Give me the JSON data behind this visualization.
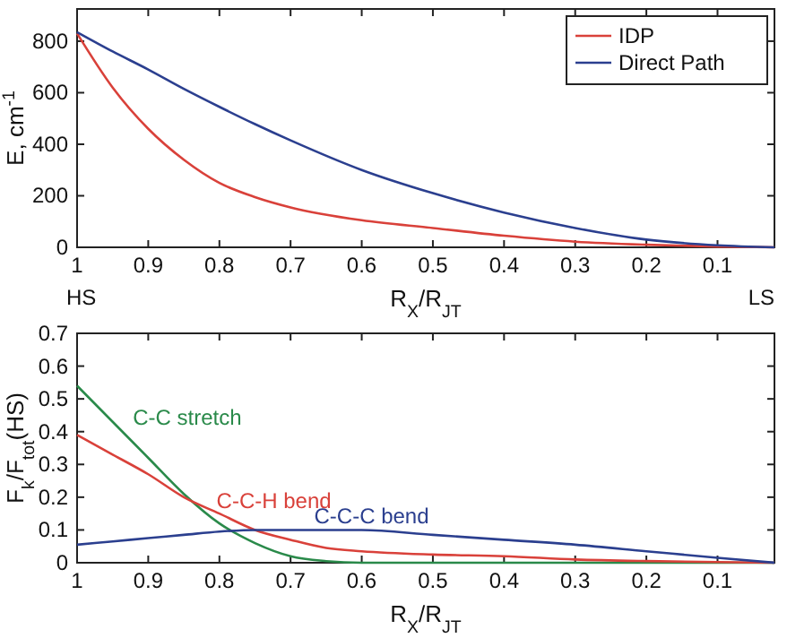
{
  "chart_data": [
    {
      "type": "line",
      "ylabel": "E, cm$^{-1}$",
      "xlabel": "R$_{X}$/R$_{JT}$",
      "annotations": [
        "HS",
        "LS"
      ],
      "xlim": [
        1,
        0.02
      ],
      "ylim": [
        0,
        925
      ],
      "xticks": [
        1,
        0.9,
        0.8,
        0.7,
        0.6,
        0.5,
        0.4,
        0.3,
        0.2,
        0.1
      ],
      "yticks": [
        0,
        200,
        400,
        600,
        800
      ],
      "legend": "top right",
      "grid": false,
      "x": [
        1,
        0.95,
        0.9,
        0.85,
        0.8,
        0.75,
        0.7,
        0.6,
        0.5,
        0.4,
        0.3,
        0.2,
        0.1,
        0.02
      ],
      "series": [
        {
          "name": "IDP",
          "color": "#d9413a",
          "values": [
            830,
            620,
            460,
            340,
            250,
            195,
            155,
            105,
            75,
            45,
            22,
            10,
            3,
            0
          ]
        },
        {
          "name": "Direct Path",
          "color": "#2b3f8f",
          "values": [
            835,
            760,
            690,
            615,
            545,
            478,
            415,
            300,
            210,
            135,
            75,
            30,
            8,
            0
          ]
        }
      ]
    },
    {
      "type": "line",
      "ylabel": "F$_{k}$/F$_{tot}$(HS)",
      "xlabel": "R$_{X}$/R$_{JT}$",
      "xlim": [
        1,
        0.02
      ],
      "ylim": [
        0,
        0.7
      ],
      "xticks": [
        1,
        0.9,
        0.8,
        0.7,
        0.6,
        0.5,
        0.4,
        0.3,
        0.2,
        0.1
      ],
      "yticks": [
        0,
        0.1,
        0.2,
        0.3,
        0.4,
        0.5,
        0.6,
        0.7
      ],
      "legend": false,
      "grid": false,
      "x": [
        1,
        0.95,
        0.9,
        0.85,
        0.8,
        0.75,
        0.7,
        0.65,
        0.6,
        0.5,
        0.4,
        0.3,
        0.2,
        0.1,
        0.02
      ],
      "series": [
        {
          "name": "C-C stretch",
          "color": "#2a8a4a",
          "values": [
            0.54,
            0.43,
            0.32,
            0.21,
            0.12,
            0.06,
            0.02,
            0.005,
            0,
            0,
            0,
            0,
            0,
            0,
            0
          ]
        },
        {
          "name": "C-C-H bend",
          "color": "#d9413a",
          "values": [
            0.39,
            0.33,
            0.27,
            0.2,
            0.15,
            0.1,
            0.07,
            0.045,
            0.035,
            0.025,
            0.02,
            0.01,
            0.005,
            0.002,
            0
          ]
        },
        {
          "name": "C-C-C bend",
          "color": "#2b3f8f",
          "values": [
            0.055,
            0.065,
            0.075,
            0.085,
            0.095,
            0.1,
            0.1,
            0.1,
            0.1,
            0.085,
            0.07,
            0.055,
            0.035,
            0.015,
            0
          ]
        }
      ]
    }
  ]
}
